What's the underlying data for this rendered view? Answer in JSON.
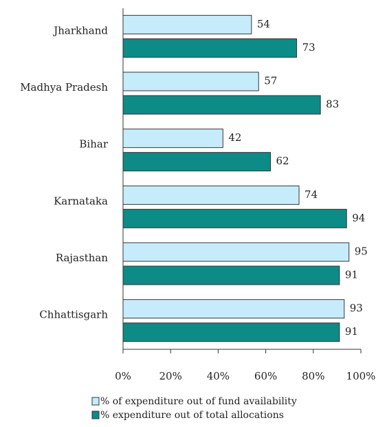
{
  "chart_data": {
    "type": "barh",
    "categories": [
      "Jharkhand",
      "Madhya Pradesh",
      "Bihar",
      "Karnataka",
      "Rajasthan",
      "Chhattisgarh"
    ],
    "series": [
      {
        "name": "% of expenditure out of fund availability",
        "color": "#c6ecfb",
        "values": [
          54,
          57,
          42,
          74,
          95,
          93
        ]
      },
      {
        "name": "% expenditure out of total allocations",
        "color": "#0d8b87",
        "values": [
          73,
          83,
          62,
          94,
          91,
          91
        ]
      }
    ],
    "xlim": [
      0,
      100
    ],
    "xticks": [
      {
        "value": 0,
        "label": "0%"
      },
      {
        "value": 20,
        "label": "20%"
      },
      {
        "value": 40,
        "label": "40%"
      },
      {
        "value": 60,
        "label": "60%"
      },
      {
        "value": 80,
        "label": "80%"
      },
      {
        "value": 100,
        "label": "100%"
      }
    ]
  }
}
